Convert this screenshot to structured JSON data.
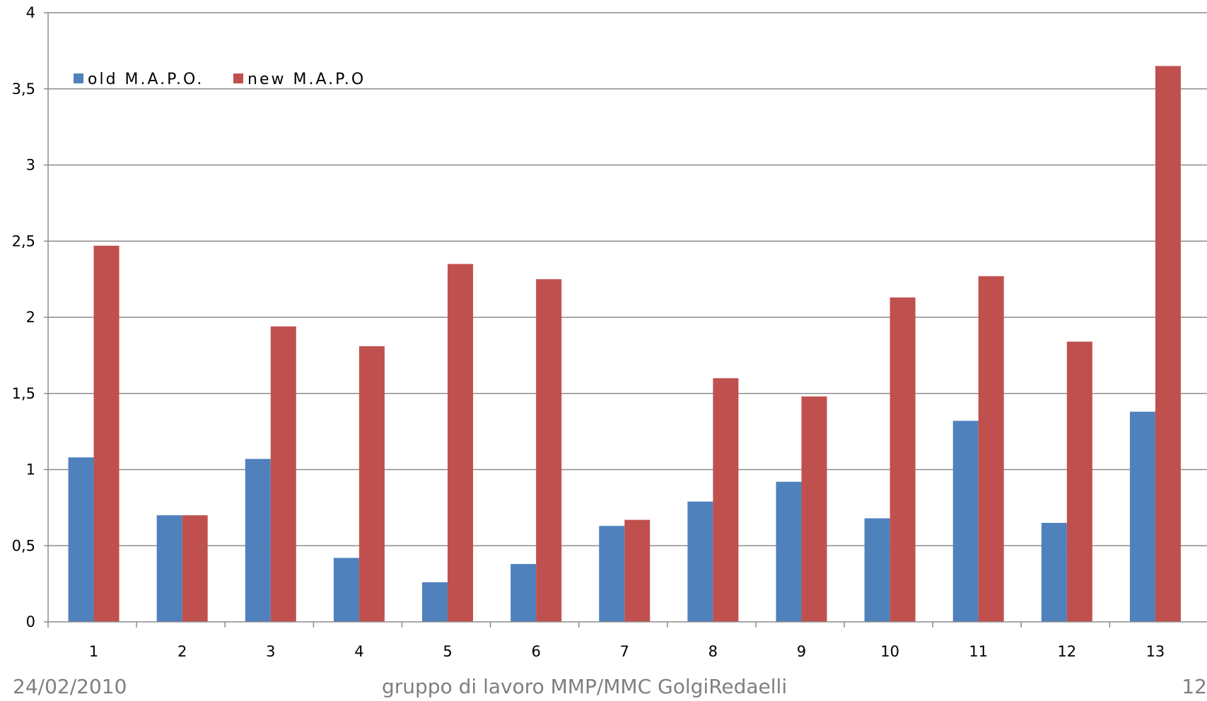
{
  "chart_data": {
    "type": "bar",
    "categories": [
      "1",
      "2",
      "3",
      "4",
      "5",
      "6",
      "7",
      "8",
      "9",
      "10",
      "11",
      "12",
      "13"
    ],
    "series": [
      {
        "name": "old M.A.P.O.",
        "color": "#4f81bd",
        "values": [
          1.08,
          0.7,
          1.07,
          0.42,
          0.26,
          0.38,
          0.63,
          0.79,
          0.92,
          0.68,
          1.32,
          0.65,
          1.38
        ]
      },
      {
        "name": "new M.A.P.O",
        "color": "#c0504d",
        "values": [
          2.47,
          0.7,
          1.94,
          1.81,
          2.35,
          2.25,
          0.67,
          1.6,
          1.48,
          2.13,
          2.27,
          1.84,
          3.65
        ]
      }
    ],
    "yticks": [
      "0",
      "0,5",
      "1",
      "1,5",
      "2",
      "2,5",
      "3",
      "3,5",
      "4"
    ],
    "ylim": [
      0,
      4
    ],
    "grid": true,
    "legend_position": "top-left"
  },
  "footer": {
    "date": "24/02/2010",
    "center": "gruppo di lavoro MMP/MMC GolgiRedaelli",
    "page": "12"
  }
}
